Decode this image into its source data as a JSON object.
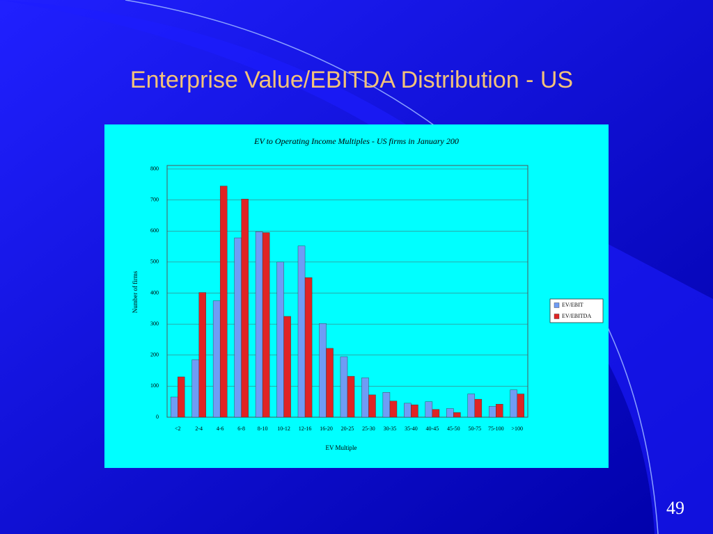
{
  "slide_title": "Enterprise Value/EBITDA Distribution - US",
  "page_number": "49",
  "chart_data": {
    "type": "bar",
    "title": "EV to Operating Income Multiples - US firms in January 200",
    "x_label": "EV Multiple",
    "y_label": "Number of firms",
    "categories": [
      "<2",
      "2-4",
      "4-6",
      "6-8",
      "8-10",
      "10-12",
      "12-16",
      "16-20",
      "20-25",
      "25-30",
      "30-35",
      "35-40",
      "40-45",
      "45-50",
      "50-75",
      "75-100",
      ">100"
    ],
    "series": [
      {
        "name": "EV/EBIT",
        "color": "#6f9cf5",
        "values": [
          65,
          185,
          375,
          578,
          598,
          500,
          552,
          302,
          195,
          127,
          80,
          45,
          50,
          28,
          75,
          35,
          88
        ]
      },
      {
        "name": "EV/EBITDA",
        "color": "#e02424",
        "values": [
          130,
          402,
          745,
          703,
          595,
          325,
          450,
          222,
          132,
          72,
          52,
          40,
          25,
          15,
          58,
          42,
          75
        ]
      }
    ],
    "ylim": [
      0,
      800
    ],
    "yticks": [
      0,
      100,
      200,
      300,
      400,
      500,
      600,
      700,
      800
    ],
    "grid": true,
    "legend": "right"
  }
}
